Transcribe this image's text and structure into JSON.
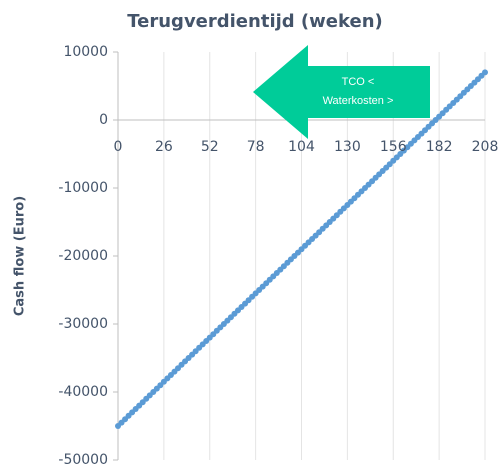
{
  "chart_data": {
    "type": "line",
    "title": "Terugverdientijd (weken)",
    "y_label": "Cash flow (Euro)",
    "annotation": [
      "TCO <",
      "Waterkosten >"
    ],
    "xlim": [
      0,
      208
    ],
    "xticks": [
      0,
      26,
      52,
      78,
      104,
      130,
      156,
      182,
      208
    ],
    "ylim": [
      -50000,
      10000
    ],
    "yticks": [
      10000,
      0,
      -10000,
      -20000,
      -30000,
      -40000,
      -50000
    ],
    "grid": true,
    "series": [
      {
        "name": "Cash flow",
        "color": "#5b9bd5",
        "x": [
          0,
          2,
          4,
          6,
          8,
          10,
          12,
          14,
          16,
          18,
          20,
          22,
          24,
          26,
          28,
          30,
          32,
          34,
          36,
          38,
          40,
          42,
          44,
          46,
          48,
          50,
          52,
          54,
          56,
          58,
          60,
          62,
          64,
          66,
          68,
          70,
          72,
          74,
          76,
          78,
          80,
          82,
          84,
          86,
          88,
          90,
          92,
          94,
          96,
          98,
          100,
          102,
          104,
          106,
          108,
          110,
          112,
          114,
          116,
          118,
          120,
          122,
          124,
          126,
          128,
          130,
          132,
          134,
          136,
          138,
          140,
          142,
          144,
          146,
          148,
          150,
          152,
          154,
          156,
          158,
          160,
          162,
          164,
          166,
          168,
          170,
          172,
          174,
          176,
          178,
          180,
          182,
          184,
          186,
          188,
          190,
          192,
          194,
          196,
          198,
          200,
          202,
          204,
          206,
          208
        ],
        "values": [
          -45000,
          -44500,
          -44000,
          -43500,
          -43000,
          -42500,
          -42000,
          -41500,
          -41000,
          -40500,
          -40000,
          -39500,
          -39000,
          -38500,
          -38000,
          -37500,
          -37000,
          -36500,
          -36000,
          -35500,
          -35000,
          -34500,
          -34000,
          -33500,
          -33000,
          -32500,
          -32000,
          -31500,
          -31000,
          -30500,
          -30000,
          -29500,
          -29000,
          -28500,
          -28000,
          -27500,
          -27000,
          -26500,
          -26000,
          -25500,
          -25000,
          -24500,
          -24000,
          -23500,
          -23000,
          -22500,
          -22000,
          -21500,
          -21000,
          -20500,
          -20000,
          -19500,
          -19000,
          -18500,
          -18000,
          -17500,
          -17000,
          -16500,
          -16000,
          -15500,
          -15000,
          -14500,
          -14000,
          -13500,
          -13000,
          -12500,
          -12000,
          -11500,
          -11000,
          -10500,
          -10000,
          -9500,
          -9000,
          -8500,
          -8000,
          -7500,
          -7000,
          -6500,
          -6000,
          -5500,
          -5000,
          -4500,
          -4000,
          -3500,
          -3000,
          -2500,
          -2000,
          -1500,
          -1000,
          -500,
          0,
          500,
          1000,
          1500,
          2000,
          2500,
          3000,
          3500,
          4000,
          4500,
          5000,
          5500,
          6000,
          6500,
          7000
        ]
      }
    ]
  }
}
